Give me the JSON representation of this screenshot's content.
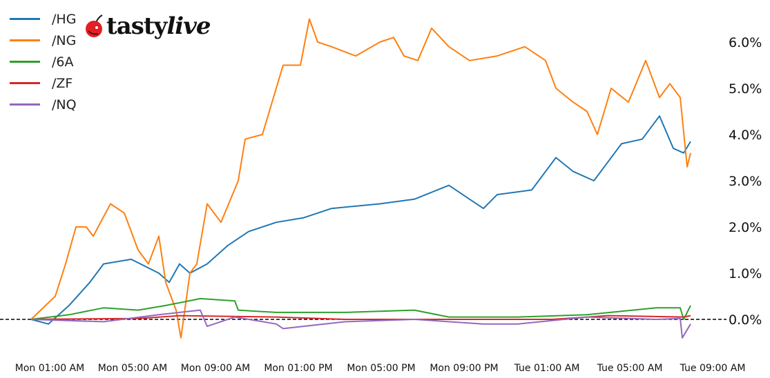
{
  "logo": {
    "text_a": "tasty",
    "text_b": "live"
  },
  "chart_data": {
    "type": "line",
    "title": "",
    "xlabel": "",
    "ylabel": "",
    "y_axis_side": "right",
    "ylim": [
      -0.5,
      6.6
    ],
    "y_ticks": [
      "0.0%",
      "1.0%",
      "2.0%",
      "3.0%",
      "4.0%",
      "5.0%",
      "6.0%"
    ],
    "y_tick_values": [
      0,
      1,
      2,
      3,
      4,
      5,
      6
    ],
    "x_ticks": [
      "Mon 01:00 AM",
      "Mon 05:00 AM",
      "Mon 09:00 AM",
      "Mon 01:00 PM",
      "Mon 05:00 PM",
      "Mon 09:00 PM",
      "Tue 01:00 AM",
      "Tue 05:00 AM",
      "Tue 09:00 AM"
    ],
    "x_tick_values": [
      "Mon 01:00",
      "Mon 05:00",
      "Mon 09:00",
      "Mon 13:00",
      "Mon 17:00",
      "Mon 21:00",
      "Tue 01:00",
      "Tue 05:00",
      "Tue 09:00"
    ],
    "zero_line": {
      "value": 0,
      "style": "dashed",
      "color": "#000000"
    },
    "grid": false,
    "legend_position": "top-left",
    "series": [
      {
        "name": "/HG",
        "color": "#1f77b4",
        "points": [
          [
            "Mon 00:06",
            0
          ],
          [
            "Mon 00:56",
            -0.1
          ],
          [
            "Mon 01:56",
            0.3
          ],
          [
            "Mon 02:56",
            0.8
          ],
          [
            "Mon 03:36",
            1.2
          ],
          [
            "Mon 04:56",
            1.3
          ],
          [
            "Mon 06:16",
            1.0
          ],
          [
            "Mon 06:46",
            0.8
          ],
          [
            "Mon 07:16",
            1.2
          ],
          [
            "Mon 07:46",
            1.0
          ],
          [
            "Mon 08:36",
            1.2
          ],
          [
            "Mon 09:36",
            1.6
          ],
          [
            "Mon 10:36",
            1.9
          ],
          [
            "Mon 11:56",
            2.1
          ],
          [
            "Mon 13:16",
            2.2
          ],
          [
            "Mon 14:36",
            2.4
          ],
          [
            "Mon 16:56",
            2.5
          ],
          [
            "Mon 18:36",
            2.6
          ],
          [
            "Mon 20:16",
            2.9
          ],
          [
            "Mon 21:16",
            2.6
          ],
          [
            "Mon 21:56",
            2.4
          ],
          [
            "Mon 22:36",
            2.7
          ],
          [
            "Tue 00:16",
            2.8
          ],
          [
            "Tue 01:26",
            3.5
          ],
          [
            "Tue 02:16",
            3.2
          ],
          [
            "Tue 03:16",
            3.0
          ],
          [
            "Tue 03:56",
            3.4
          ],
          [
            "Tue 04:36",
            3.8
          ],
          [
            "Tue 05:36",
            3.9
          ],
          [
            "Tue 06:26",
            4.4
          ],
          [
            "Tue 07:06",
            3.7
          ],
          [
            "Tue 07:36",
            3.6
          ],
          [
            "Tue 07:56",
            3.85
          ]
        ]
      },
      {
        "name": "/NG",
        "color": "#ff7f0e",
        "points": [
          [
            "Mon 00:06",
            0
          ],
          [
            "Mon 01:16",
            0.5
          ],
          [
            "Mon 01:46",
            1.2
          ],
          [
            "Mon 02:16",
            2.0
          ],
          [
            "Mon 02:46",
            2.0
          ],
          [
            "Mon 03:06",
            1.8
          ],
          [
            "Mon 03:56",
            2.5
          ],
          [
            "Mon 04:36",
            2.3
          ],
          [
            "Mon 05:16",
            1.5
          ],
          [
            "Mon 05:46",
            1.2
          ],
          [
            "Mon 06:16",
            1.8
          ],
          [
            "Mon 06:36",
            0.8
          ],
          [
            "Mon 07:06",
            0.2
          ],
          [
            "Mon 07:20",
            -0.4
          ],
          [
            "Mon 07:46",
            1.0
          ],
          [
            "Mon 08:06",
            1.2
          ],
          [
            "Mon 08:36",
            2.5
          ],
          [
            "Mon 09:16",
            2.1
          ],
          [
            "Mon 10:06",
            3.0
          ],
          [
            "Mon 10:26",
            3.9
          ],
          [
            "Mon 11:16",
            4.0
          ],
          [
            "Mon 12:16",
            5.5
          ],
          [
            "Mon 13:06",
            5.5
          ],
          [
            "Mon 13:32",
            6.5
          ],
          [
            "Mon 13:56",
            6.0
          ],
          [
            "Mon 14:36",
            5.9
          ],
          [
            "Mon 15:46",
            5.7
          ],
          [
            "Mon 16:56",
            6.0
          ],
          [
            "Mon 17:36",
            6.1
          ],
          [
            "Mon 18:06",
            5.7
          ],
          [
            "Mon 18:46",
            5.6
          ],
          [
            "Mon 19:26",
            6.3
          ],
          [
            "Mon 20:16",
            5.9
          ],
          [
            "Mon 21:16",
            5.6
          ],
          [
            "Mon 22:36",
            5.7
          ],
          [
            "Mon 23:56",
            5.9
          ],
          [
            "Tue 00:56",
            5.6
          ],
          [
            "Tue 01:26",
            5.0
          ],
          [
            "Tue 02:16",
            4.7
          ],
          [
            "Tue 02:56",
            4.5
          ],
          [
            "Tue 03:26",
            4.0
          ],
          [
            "Tue 04:06",
            5.0
          ],
          [
            "Tue 04:56",
            4.7
          ],
          [
            "Tue 05:46",
            5.6
          ],
          [
            "Tue 06:26",
            4.8
          ],
          [
            "Tue 06:56",
            5.1
          ],
          [
            "Tue 07:26",
            4.8
          ],
          [
            "Tue 07:46",
            3.3
          ],
          [
            "Tue 07:56",
            3.6
          ]
        ]
      },
      {
        "name": "/6A",
        "color": "#2ca02c",
        "points": [
          [
            "Mon 00:06",
            0
          ],
          [
            "Mon 01:56",
            0.1
          ],
          [
            "Mon 03:36",
            0.25
          ],
          [
            "Mon 05:16",
            0.2
          ],
          [
            "Mon 06:36",
            0.3
          ],
          [
            "Mon 08:16",
            0.45
          ],
          [
            "Mon 09:56",
            0.4
          ],
          [
            "Mon 10:06",
            0.2
          ],
          [
            "Mon 11:56",
            0.15
          ],
          [
            "Mon 15:16",
            0.15
          ],
          [
            "Mon 18:36",
            0.2
          ],
          [
            "Mon 20:16",
            0.05
          ],
          [
            "Mon 23:36",
            0.05
          ],
          [
            "Tue 02:56",
            0.1
          ],
          [
            "Tue 06:16",
            0.25
          ],
          [
            "Tue 07:26",
            0.25
          ],
          [
            "Tue 07:36",
            0
          ],
          [
            "Tue 07:56",
            0.3
          ]
        ]
      },
      {
        "name": "/ZF",
        "color": "#d62728",
        "points": [
          [
            "Mon 00:06",
            0
          ],
          [
            "Mon 05:16",
            0.02
          ],
          [
            "Mon 07:16",
            0.08
          ],
          [
            "Mon 11:56",
            0.05
          ],
          [
            "Mon 15:16",
            0
          ],
          [
            "Mon 18:36",
            0
          ],
          [
            "Tue 01:16",
            0
          ],
          [
            "Tue 03:56",
            0.08
          ],
          [
            "Tue 07:36",
            0.05
          ],
          [
            "Tue 07:56",
            0.08
          ]
        ]
      },
      {
        "name": "/NQ",
        "color": "#9467bd",
        "points": [
          [
            "Mon 00:06",
            0
          ],
          [
            "Mon 03:36",
            -0.05
          ],
          [
            "Mon 06:16",
            0.1
          ],
          [
            "Mon 07:16",
            0.15
          ],
          [
            "Mon 08:16",
            0.2
          ],
          [
            "Mon 08:36",
            -0.15
          ],
          [
            "Mon 09:56",
            0.05
          ],
          [
            "Mon 11:56",
            -0.1
          ],
          [
            "Mon 12:16",
            -0.2
          ],
          [
            "Mon 15:16",
            -0.05
          ],
          [
            "Mon 18:36",
            0
          ],
          [
            "Mon 21:56",
            -0.1
          ],
          [
            "Mon 23:36",
            -0.1
          ],
          [
            "Tue 02:56",
            0.05
          ],
          [
            "Tue 06:16",
            0
          ],
          [
            "Tue 07:26",
            0.02
          ],
          [
            "Tue 07:32",
            -0.4
          ],
          [
            "Tue 07:56",
            -0.1
          ]
        ]
      }
    ]
  }
}
